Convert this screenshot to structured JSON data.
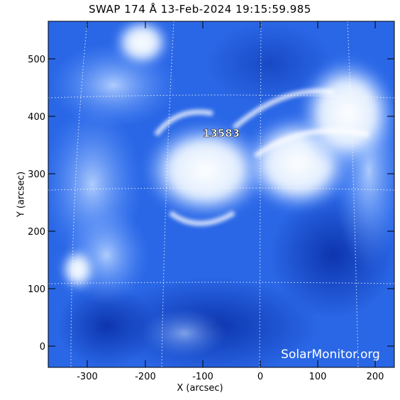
{
  "title": "SWAP 174 Å 13-Feb-2024 19:15:59.985",
  "x_axis_label": "X (arcsec)",
  "y_axis_label": "Y (arcsec)",
  "x_ticks": [
    "-300",
    "-200",
    "-100",
    "0",
    "100",
    "200"
  ],
  "y_ticks": [
    "0",
    "100",
    "200",
    "300",
    "400",
    "500"
  ],
  "region_label": "13583",
  "watermark": "SolarMonitor.org",
  "colors": {
    "background": "#1a5ae0",
    "bright": "#ffffff",
    "dark": "#0a2fa8"
  }
}
